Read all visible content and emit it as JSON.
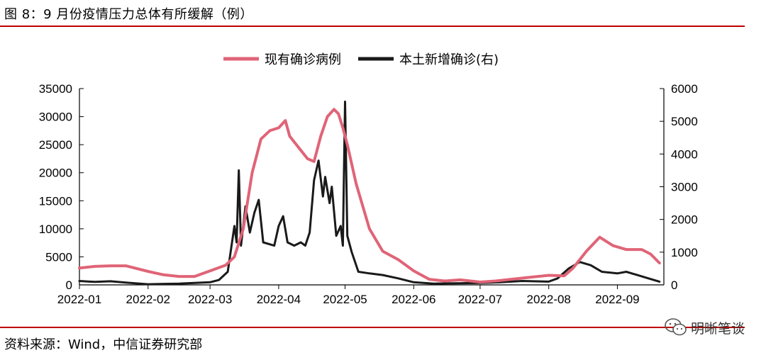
{
  "header": {
    "title": "图 8：9 月份疫情压力总体有所缓解（例）"
  },
  "footer": {
    "source": "资料来源：Wind，中信证券研究部",
    "watermark": "明晰笔谈"
  },
  "colors": {
    "rule": "#c00000",
    "series_left": "#e06477",
    "series_right": "#1a1a1a"
  },
  "chart_data": {
    "type": "line",
    "title": "",
    "xlabel": "",
    "ylabel": "",
    "x_ticks": [
      "2022-01",
      "2022-02",
      "2022-03",
      "2022-04",
      "2022-05",
      "2022-06",
      "2022-07",
      "2022-08",
      "2022-09"
    ],
    "y_left": {
      "ylim": [
        0,
        35000
      ],
      "ticks": [
        "0",
        "5000",
        "10000",
        "15000",
        "20000",
        "25000",
        "30000",
        "35000"
      ]
    },
    "y_right": {
      "ylim": [
        0,
        6000
      ],
      "ticks": [
        "0",
        "1000",
        "2000",
        "3000",
        "4000",
        "5000",
        "6000"
      ]
    },
    "legend": {
      "placement": "top-center"
    },
    "series": [
      {
        "name": "现有确诊病例",
        "axis": "left",
        "points": [
          [
            "2022-01-01",
            3000
          ],
          [
            "2022-01-08",
            3300
          ],
          [
            "2022-01-15",
            3400
          ],
          [
            "2022-01-22",
            3400
          ],
          [
            "2022-02-01",
            2400
          ],
          [
            "2022-02-08",
            1800
          ],
          [
            "2022-02-15",
            1500
          ],
          [
            "2022-02-22",
            1500
          ],
          [
            "2022-03-01",
            2500
          ],
          [
            "2022-03-08",
            3500
          ],
          [
            "2022-03-12",
            5000
          ],
          [
            "2022-03-16",
            10000
          ],
          [
            "2022-03-20",
            20000
          ],
          [
            "2022-03-24",
            26000
          ],
          [
            "2022-03-28",
            27500
          ],
          [
            "2022-04-01",
            28000
          ],
          [
            "2022-04-04",
            29300
          ],
          [
            "2022-04-06",
            26500
          ],
          [
            "2022-04-10",
            24500
          ],
          [
            "2022-04-14",
            22500
          ],
          [
            "2022-04-17",
            22000
          ],
          [
            "2022-04-20",
            26500
          ],
          [
            "2022-04-23",
            30000
          ],
          [
            "2022-04-26",
            31300
          ],
          [
            "2022-04-28",
            30500
          ],
          [
            "2022-04-30",
            28000
          ],
          [
            "2022-05-02",
            25000
          ],
          [
            "2022-05-06",
            18000
          ],
          [
            "2022-05-12",
            10000
          ],
          [
            "2022-05-18",
            6000
          ],
          [
            "2022-05-25",
            4500
          ],
          [
            "2022-06-01",
            2500
          ],
          [
            "2022-06-08",
            1000
          ],
          [
            "2022-06-15",
            700
          ],
          [
            "2022-06-22",
            900
          ],
          [
            "2022-07-01",
            500
          ],
          [
            "2022-07-08",
            700
          ],
          [
            "2022-07-15",
            1000
          ],
          [
            "2022-07-22",
            1300
          ],
          [
            "2022-08-01",
            1700
          ],
          [
            "2022-08-08",
            1600
          ],
          [
            "2022-08-12",
            3000
          ],
          [
            "2022-08-18",
            6000
          ],
          [
            "2022-08-24",
            8500
          ],
          [
            "2022-08-30",
            7000
          ],
          [
            "2022-09-05",
            6300
          ],
          [
            "2022-09-12",
            6300
          ],
          [
            "2022-09-16",
            5500
          ],
          [
            "2022-09-20",
            3900
          ]
        ]
      },
      {
        "name": "本土新增确诊(右)",
        "axis": "right",
        "points": [
          [
            "2022-01-01",
            120
          ],
          [
            "2022-01-08",
            90
          ],
          [
            "2022-01-15",
            110
          ],
          [
            "2022-01-22",
            70
          ],
          [
            "2022-02-01",
            20
          ],
          [
            "2022-02-08",
            30
          ],
          [
            "2022-02-15",
            40
          ],
          [
            "2022-02-22",
            60
          ],
          [
            "2022-03-01",
            80
          ],
          [
            "2022-03-05",
            150
          ],
          [
            "2022-03-09",
            400
          ],
          [
            "2022-03-12",
            1800
          ],
          [
            "2022-03-13",
            1300
          ],
          [
            "2022-03-14",
            3500
          ],
          [
            "2022-03-15",
            1200
          ],
          [
            "2022-03-17",
            2400
          ],
          [
            "2022-03-19",
            1600
          ],
          [
            "2022-03-21",
            2200
          ],
          [
            "2022-03-23",
            2600
          ],
          [
            "2022-03-25",
            1300
          ],
          [
            "2022-03-30",
            1200
          ],
          [
            "2022-04-01",
            1800
          ],
          [
            "2022-04-03",
            2100
          ],
          [
            "2022-04-05",
            1300
          ],
          [
            "2022-04-08",
            1200
          ],
          [
            "2022-04-11",
            1300
          ],
          [
            "2022-04-13",
            1200
          ],
          [
            "2022-04-15",
            1600
          ],
          [
            "2022-04-17",
            3200
          ],
          [
            "2022-04-19",
            3800
          ],
          [
            "2022-04-21",
            2700
          ],
          [
            "2022-04-22",
            3300
          ],
          [
            "2022-04-24",
            2500
          ],
          [
            "2022-04-25",
            3000
          ],
          [
            "2022-04-27",
            1500
          ],
          [
            "2022-04-29",
            1800
          ],
          [
            "2022-04-30",
            1200
          ],
          [
            "2022-05-01",
            5600
          ],
          [
            "2022-05-02",
            1500
          ],
          [
            "2022-05-04",
            1000
          ],
          [
            "2022-05-07",
            400
          ],
          [
            "2022-05-12",
            350
          ],
          [
            "2022-05-18",
            300
          ],
          [
            "2022-05-25",
            200
          ],
          [
            "2022-06-01",
            80
          ],
          [
            "2022-06-10",
            40
          ],
          [
            "2022-06-20",
            50
          ],
          [
            "2022-07-01",
            60
          ],
          [
            "2022-07-10",
            80
          ],
          [
            "2022-07-20",
            120
          ],
          [
            "2022-08-01",
            100
          ],
          [
            "2022-08-05",
            200
          ],
          [
            "2022-08-10",
            500
          ],
          [
            "2022-08-15",
            700
          ],
          [
            "2022-08-20",
            600
          ],
          [
            "2022-08-25",
            400
          ],
          [
            "2022-09-01",
            350
          ],
          [
            "2022-09-05",
            400
          ],
          [
            "2022-09-10",
            300
          ],
          [
            "2022-09-15",
            200
          ],
          [
            "2022-09-20",
            100
          ]
        ]
      }
    ]
  }
}
